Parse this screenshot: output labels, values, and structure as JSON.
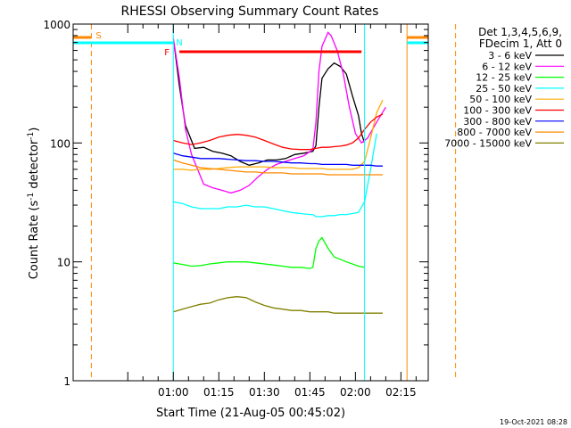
{
  "chart_data": {
    "type": "line",
    "title": "RHESSI Observing Summary Count Rates",
    "xlabel": "Start Time (21-Aug-05 00:45:02)",
    "ylabel_parts": [
      "Count Rate (s",
      "-1",
      " detector",
      "-1",
      ")"
    ],
    "yscale": "log",
    "ylim": [
      1,
      1000
    ],
    "y_ticks": [
      "1",
      "10",
      "100",
      "1000"
    ],
    "x_range_minutes": [
      -18,
      81
    ],
    "x_ticks": [
      {
        "t": 15,
        "label": "01:00"
      },
      {
        "t": 30,
        "label": "01:15"
      },
      {
        "t": 45,
        "label": "01:30"
      },
      {
        "t": 60,
        "label": "01:45"
      },
      {
        "t": 75,
        "label": "02:00"
      },
      {
        "t": 90,
        "label": "02:15"
      }
    ],
    "legend_header": [
      "Det 1,3,4,5,6,9,",
      "FDecim 1, Att 0"
    ],
    "legend_position": "right",
    "timestamp": "19-Oct-2021 08:28",
    "series": [
      {
        "name": "3 - 6 keV",
        "color": "#000000",
        "points": [
          [
            15.4,
            640
          ],
          [
            17,
            300
          ],
          [
            19,
            140
          ],
          [
            22,
            90
          ],
          [
            25,
            92
          ],
          [
            28,
            85
          ],
          [
            31,
            82
          ],
          [
            34,
            78
          ],
          [
            37,
            70
          ],
          [
            40,
            65
          ],
          [
            43,
            68
          ],
          [
            46,
            72
          ],
          [
            49,
            72
          ],
          [
            52,
            74
          ],
          [
            55,
            80
          ],
          [
            58,
            82
          ],
          [
            61,
            85
          ],
          [
            62,
            95
          ],
          [
            63,
            200
          ],
          [
            64,
            350
          ],
          [
            66,
            420
          ],
          [
            68,
            470
          ],
          [
            70,
            440
          ],
          [
            72,
            380
          ],
          [
            74,
            250
          ],
          [
            76,
            170
          ],
          [
            77,
            120
          ],
          [
            78,
            100
          ]
        ]
      },
      {
        "name": "6 - 12 keV",
        "color": "#ff00ff",
        "points": [
          [
            15,
            760
          ],
          [
            17,
            350
          ],
          [
            19,
            130
          ],
          [
            21,
            80
          ],
          [
            23,
            60
          ],
          [
            25,
            45
          ],
          [
            28,
            42
          ],
          [
            31,
            40
          ],
          [
            34,
            38
          ],
          [
            37,
            40
          ],
          [
            40,
            44
          ],
          [
            43,
            52
          ],
          [
            46,
            60
          ],
          [
            49,
            66
          ],
          [
            52,
            70
          ],
          [
            55,
            74
          ],
          [
            58,
            78
          ],
          [
            61,
            88
          ],
          [
            62,
            150
          ],
          [
            63,
            400
          ],
          [
            64,
            650
          ],
          [
            66,
            850
          ],
          [
            67,
            800
          ],
          [
            69,
            600
          ],
          [
            71,
            380
          ],
          [
            73,
            200
          ],
          [
            75,
            120
          ],
          [
            77,
            100
          ],
          [
            79,
            110
          ],
          [
            82,
            150
          ],
          [
            85,
            200
          ]
        ]
      },
      {
        "name": "12 - 25 keV",
        "color": "#00ff00",
        "points": [
          [
            15,
            9.8
          ],
          [
            18,
            9.5
          ],
          [
            21,
            9.2
          ],
          [
            24,
            9.3
          ],
          [
            27,
            9.6
          ],
          [
            30,
            9.8
          ],
          [
            33,
            10
          ],
          [
            36,
            10
          ],
          [
            39,
            10
          ],
          [
            42,
            9.8
          ],
          [
            45,
            9.6
          ],
          [
            48,
            9.4
          ],
          [
            51,
            9.2
          ],
          [
            54,
            9.0
          ],
          [
            57,
            9.0
          ],
          [
            60,
            8.8
          ],
          [
            61,
            9.0
          ],
          [
            62,
            13
          ],
          [
            63,
            15
          ],
          [
            64,
            16
          ],
          [
            66,
            13
          ],
          [
            68,
            11
          ],
          [
            70,
            10.5
          ],
          [
            72,
            10
          ],
          [
            74,
            9.6
          ],
          [
            76,
            9.2
          ],
          [
            78,
            9.0
          ]
        ]
      },
      {
        "name": "25 - 50 keV",
        "color": "#00ffff",
        "points": [
          [
            15,
            32
          ],
          [
            18,
            31
          ],
          [
            21,
            29
          ],
          [
            24,
            28
          ],
          [
            27,
            28
          ],
          [
            30,
            28
          ],
          [
            33,
            29
          ],
          [
            36,
            29
          ],
          [
            39,
            30
          ],
          [
            42,
            29
          ],
          [
            45,
            29
          ],
          [
            48,
            28
          ],
          [
            51,
            27
          ],
          [
            54,
            26
          ],
          [
            57,
            25.5
          ],
          [
            60,
            25
          ],
          [
            61,
            25
          ],
          [
            62,
            24
          ],
          [
            64,
            24
          ],
          [
            66,
            24.5
          ],
          [
            68,
            24.5
          ],
          [
            70,
            25
          ],
          [
            72,
            25
          ],
          [
            74,
            25.5
          ],
          [
            76,
            26
          ],
          [
            78,
            32
          ],
          [
            80,
            60
          ],
          [
            82,
            120
          ]
        ]
      },
      {
        "name": "50 - 100 keV",
        "color": "#ffaa00",
        "points": [
          [
            15,
            60
          ],
          [
            18,
            60
          ],
          [
            21,
            59
          ],
          [
            24,
            60
          ],
          [
            27,
            60
          ],
          [
            30,
            61
          ],
          [
            33,
            62
          ],
          [
            36,
            63
          ],
          [
            39,
            63
          ],
          [
            42,
            63
          ],
          [
            45,
            63
          ],
          [
            48,
            62
          ],
          [
            51,
            62
          ],
          [
            54,
            62
          ],
          [
            57,
            61
          ],
          [
            60,
            61
          ],
          [
            62,
            61
          ],
          [
            64,
            61
          ],
          [
            66,
            60
          ],
          [
            68,
            60
          ],
          [
            70,
            60
          ],
          [
            72,
            60
          ],
          [
            74,
            60
          ],
          [
            76,
            62
          ],
          [
            78,
            70
          ],
          [
            80,
            110
          ],
          [
            82,
            180
          ],
          [
            84,
            230
          ]
        ]
      },
      {
        "name": "100 - 300 keV",
        "color": "#ff0000",
        "points": [
          [
            15,
            105
          ],
          [
            18,
            100
          ],
          [
            21,
            97
          ],
          [
            24,
            100
          ],
          [
            27,
            105
          ],
          [
            30,
            112
          ],
          [
            33,
            116
          ],
          [
            36,
            118
          ],
          [
            39,
            116
          ],
          [
            42,
            112
          ],
          [
            45,
            105
          ],
          [
            48,
            98
          ],
          [
            51,
            92
          ],
          [
            54,
            89
          ],
          [
            57,
            88
          ],
          [
            60,
            88
          ],
          [
            62,
            90
          ],
          [
            64,
            92
          ],
          [
            66,
            92
          ],
          [
            68,
            93
          ],
          [
            70,
            94
          ],
          [
            72,
            96
          ],
          [
            74,
            100
          ],
          [
            76,
            110
          ],
          [
            78,
            130
          ],
          [
            80,
            150
          ],
          [
            82,
            165
          ],
          [
            84,
            175
          ]
        ]
      },
      {
        "name": "300 - 800 keV",
        "color": "#0000ff",
        "points": [
          [
            15,
            82
          ],
          [
            18,
            78
          ],
          [
            21,
            76
          ],
          [
            24,
            74
          ],
          [
            27,
            74
          ],
          [
            30,
            74
          ],
          [
            33,
            73
          ],
          [
            36,
            72
          ],
          [
            39,
            71
          ],
          [
            42,
            71
          ],
          [
            45,
            70
          ],
          [
            48,
            70
          ],
          [
            51,
            69
          ],
          [
            54,
            68
          ],
          [
            57,
            68
          ],
          [
            60,
            67
          ],
          [
            62,
            67
          ],
          [
            64,
            66
          ],
          [
            66,
            66
          ],
          [
            68,
            66
          ],
          [
            70,
            66
          ],
          [
            72,
            66
          ],
          [
            74,
            65
          ],
          [
            76,
            65
          ],
          [
            78,
            65
          ],
          [
            80,
            65
          ],
          [
            82,
            64
          ],
          [
            84,
            64
          ]
        ]
      },
      {
        "name": "800 - 7000 keV",
        "color": "#ff8800",
        "points": [
          [
            15,
            72
          ],
          [
            18,
            68
          ],
          [
            21,
            65
          ],
          [
            24,
            62
          ],
          [
            27,
            61
          ],
          [
            30,
            60
          ],
          [
            33,
            59
          ],
          [
            36,
            58
          ],
          [
            39,
            57
          ],
          [
            42,
            57
          ],
          [
            45,
            56
          ],
          [
            48,
            56
          ],
          [
            51,
            56
          ],
          [
            54,
            55
          ],
          [
            57,
            55
          ],
          [
            60,
            55
          ],
          [
            62,
            55
          ],
          [
            64,
            55
          ],
          [
            66,
            54
          ],
          [
            68,
            54
          ],
          [
            70,
            54
          ],
          [
            72,
            54
          ],
          [
            74,
            54
          ],
          [
            76,
            54
          ],
          [
            78,
            54
          ],
          [
            80,
            54
          ],
          [
            82,
            54
          ],
          [
            84,
            54
          ]
        ]
      },
      {
        "name": "7000 - 15000 keV",
        "color": "#808000",
        "points": [
          [
            15,
            3.8
          ],
          [
            18,
            4.0
          ],
          [
            21,
            4.2
          ],
          [
            24,
            4.4
          ],
          [
            27,
            4.5
          ],
          [
            30,
            4.8
          ],
          [
            33,
            5.0
          ],
          [
            36,
            5.1
          ],
          [
            39,
            5.0
          ],
          [
            42,
            4.6
          ],
          [
            45,
            4.3
          ],
          [
            48,
            4.1
          ],
          [
            51,
            4.0
          ],
          [
            54,
            3.9
          ],
          [
            57,
            3.9
          ],
          [
            60,
            3.8
          ],
          [
            62,
            3.8
          ],
          [
            64,
            3.8
          ],
          [
            66,
            3.8
          ],
          [
            68,
            3.7
          ],
          [
            70,
            3.7
          ],
          [
            72,
            3.7
          ],
          [
            74,
            3.7
          ],
          [
            76,
            3.7
          ],
          [
            78,
            3.7
          ],
          [
            80,
            3.7
          ],
          [
            82,
            3.7
          ],
          [
            84,
            3.7
          ]
        ]
      }
    ],
    "annotations": [
      {
        "label": "S",
        "color": "#ff8800"
      },
      {
        "label": "N",
        "color": "#00ffff"
      },
      {
        "label": "F",
        "color": "#ff0000"
      }
    ]
  }
}
